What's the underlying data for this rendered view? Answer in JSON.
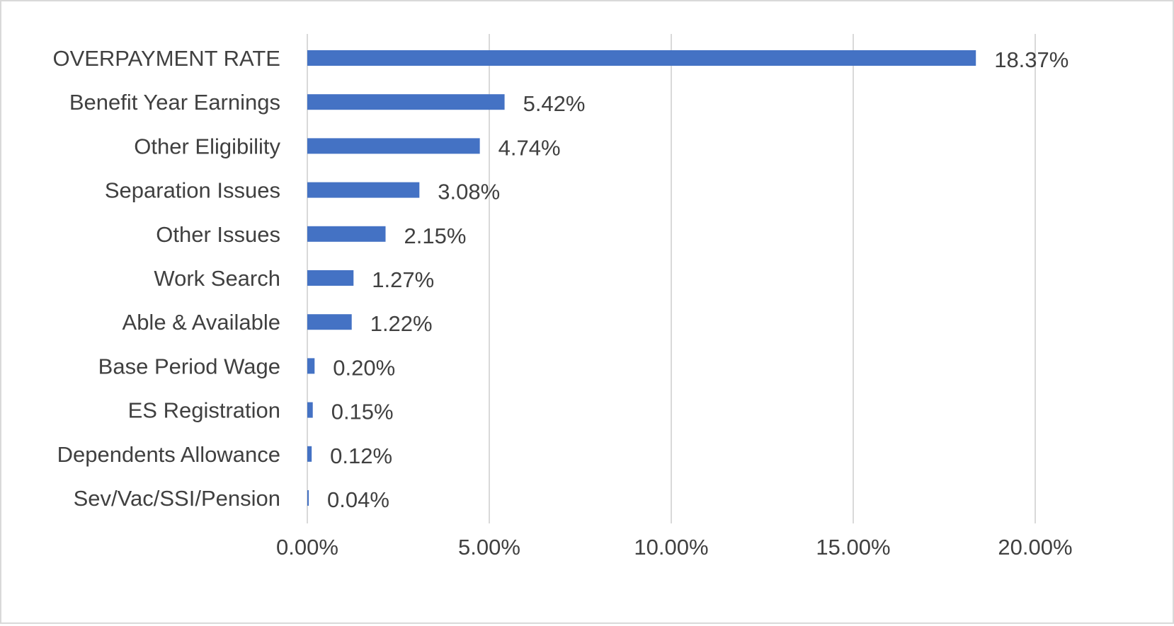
{
  "chart_data": {
    "type": "bar",
    "orientation": "horizontal",
    "title": "",
    "xlabel": "",
    "ylabel": "",
    "categories": [
      "OVERPAYMENT RATE",
      "Benefit Year Earnings",
      "Other Eligibility",
      "Separation Issues",
      "Other Issues",
      "Work Search",
      "Able & Available",
      "Base Period Wage",
      "ES Registration",
      "Dependents Allowance",
      "Sev/Vac/SSI/Pension"
    ],
    "values": [
      18.37,
      5.42,
      4.74,
      3.08,
      2.15,
      1.27,
      1.22,
      0.2,
      0.15,
      0.12,
      0.04
    ],
    "data_labels": [
      "18.37%",
      "5.42%",
      "4.74%",
      "3.08%",
      "2.15%",
      "1.27%",
      "1.22%",
      "0.20%",
      "0.15%",
      "0.12%",
      "0.04%"
    ],
    "xlim": [
      0,
      20
    ],
    "x_ticks": [
      0,
      5,
      10,
      15,
      20
    ],
    "x_tick_labels": [
      "0.00%",
      "5.00%",
      "10.00%",
      "15.00%",
      "20.00%"
    ],
    "grid": "vertical",
    "legend": "none",
    "bar_color": "#4472c4",
    "grid_color": "#d9d9d9",
    "text_color": "#404040"
  }
}
